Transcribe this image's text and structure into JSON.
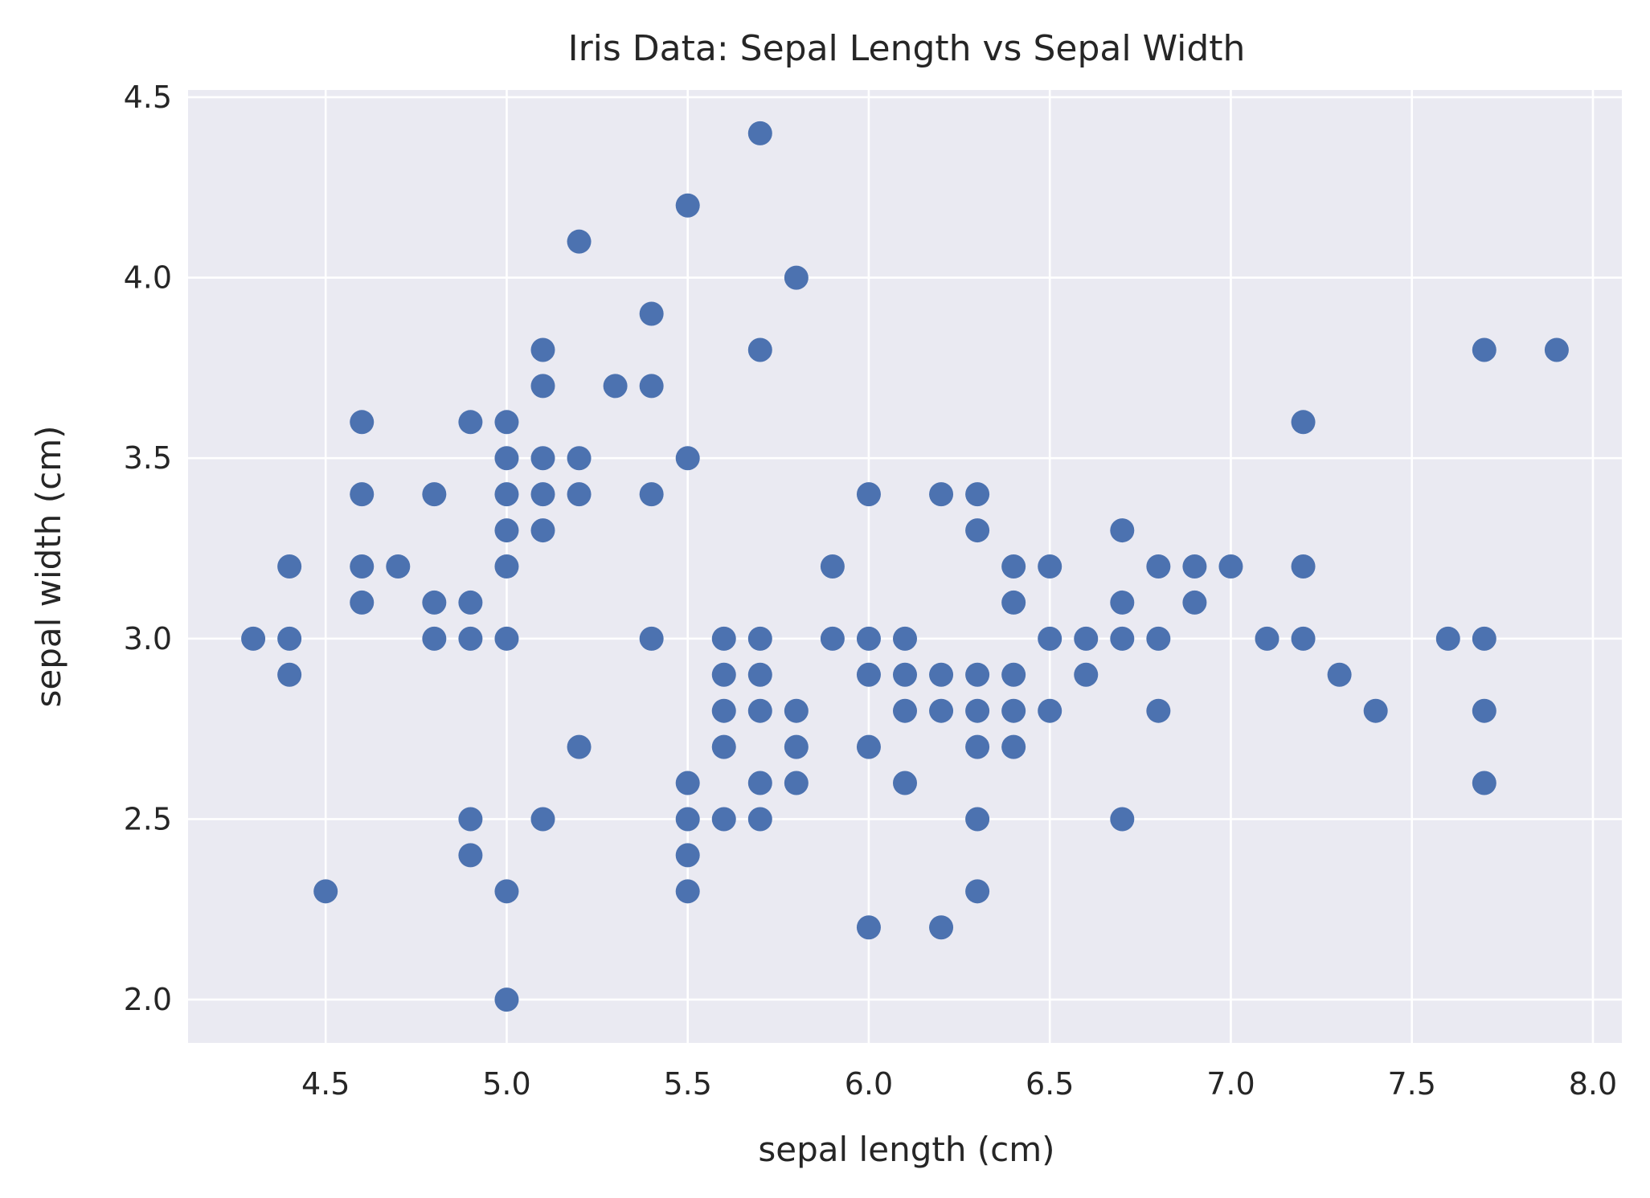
{
  "chart_data": {
    "type": "scatter",
    "title": "Iris Data: Sepal Length vs Sepal Width",
    "xlabel": "sepal length (cm)",
    "ylabel": "sepal width (cm)",
    "xlim": [
      4.12,
      8.08
    ],
    "ylim": [
      1.88,
      4.52
    ],
    "xticks": [
      "4.5",
      "5.0",
      "5.5",
      "6.0",
      "6.5",
      "7.0",
      "7.5",
      "8.0"
    ],
    "yticks": [
      "2.0",
      "2.5",
      "3.0",
      "3.5",
      "4.0",
      "4.5"
    ],
    "grid": true,
    "colors": {
      "background": "#eaeaf2",
      "grid": "#ffffff",
      "point": "#4c72b0"
    },
    "series": [
      {
        "points": [
          [
            4.3,
            3.0
          ],
          [
            4.4,
            3.2
          ],
          [
            4.4,
            3.0
          ],
          [
            4.4,
            2.9
          ],
          [
            4.5,
            2.3
          ],
          [
            4.6,
            3.6
          ],
          [
            4.6,
            3.4
          ],
          [
            4.6,
            3.2
          ],
          [
            4.6,
            3.1
          ],
          [
            4.7,
            3.2
          ],
          [
            4.8,
            3.4
          ],
          [
            4.8,
            3.1
          ],
          [
            4.8,
            3.0
          ],
          [
            4.9,
            3.6
          ],
          [
            4.9,
            3.1
          ],
          [
            4.9,
            3.0
          ],
          [
            4.9,
            2.5
          ],
          [
            4.9,
            2.4
          ],
          [
            5.0,
            3.6
          ],
          [
            5.0,
            3.5
          ],
          [
            5.0,
            3.4
          ],
          [
            5.0,
            3.3
          ],
          [
            5.0,
            3.2
          ],
          [
            5.0,
            3.0
          ],
          [
            5.0,
            2.3
          ],
          [
            5.0,
            2.0
          ],
          [
            5.1,
            3.8
          ],
          [
            5.1,
            3.7
          ],
          [
            5.1,
            3.5
          ],
          [
            5.1,
            3.4
          ],
          [
            5.1,
            3.3
          ],
          [
            5.1,
            2.5
          ],
          [
            5.2,
            4.1
          ],
          [
            5.2,
            3.5
          ],
          [
            5.2,
            3.4
          ],
          [
            5.2,
            2.7
          ],
          [
            5.3,
            3.7
          ],
          [
            5.4,
            3.9
          ],
          [
            5.4,
            3.7
          ],
          [
            5.4,
            3.4
          ],
          [
            5.4,
            3.0
          ],
          [
            5.5,
            4.2
          ],
          [
            5.5,
            3.5
          ],
          [
            5.5,
            2.6
          ],
          [
            5.5,
            2.5
          ],
          [
            5.5,
            2.4
          ],
          [
            5.5,
            2.3
          ],
          [
            5.6,
            3.0
          ],
          [
            5.6,
            2.9
          ],
          [
            5.6,
            2.8
          ],
          [
            5.6,
            2.7
          ],
          [
            5.6,
            2.5
          ],
          [
            5.7,
            4.4
          ],
          [
            5.7,
            3.8
          ],
          [
            5.7,
            3.0
          ],
          [
            5.7,
            2.9
          ],
          [
            5.7,
            2.8
          ],
          [
            5.7,
            2.6
          ],
          [
            5.7,
            2.5
          ],
          [
            5.8,
            4.0
          ],
          [
            5.8,
            2.8
          ],
          [
            5.8,
            2.7
          ],
          [
            5.8,
            2.6
          ],
          [
            5.9,
            3.2
          ],
          [
            5.9,
            3.0
          ],
          [
            6.0,
            3.4
          ],
          [
            6.0,
            3.0
          ],
          [
            6.0,
            2.9
          ],
          [
            6.0,
            2.7
          ],
          [
            6.0,
            2.2
          ],
          [
            6.1,
            3.0
          ],
          [
            6.1,
            2.9
          ],
          [
            6.1,
            2.8
          ],
          [
            6.1,
            2.6
          ],
          [
            6.2,
            3.4
          ],
          [
            6.2,
            2.9
          ],
          [
            6.2,
            2.8
          ],
          [
            6.2,
            2.2
          ],
          [
            6.3,
            3.4
          ],
          [
            6.3,
            3.3
          ],
          [
            6.3,
            2.9
          ],
          [
            6.3,
            2.8
          ],
          [
            6.3,
            2.7
          ],
          [
            6.3,
            2.5
          ],
          [
            6.3,
            2.3
          ],
          [
            6.4,
            3.2
          ],
          [
            6.4,
            3.1
          ],
          [
            6.4,
            2.9
          ],
          [
            6.4,
            2.8
          ],
          [
            6.4,
            2.7
          ],
          [
            6.5,
            3.2
          ],
          [
            6.5,
            3.0
          ],
          [
            6.5,
            2.8
          ],
          [
            6.6,
            3.0
          ],
          [
            6.6,
            2.9
          ],
          [
            6.7,
            3.3
          ],
          [
            6.7,
            3.1
          ],
          [
            6.7,
            3.0
          ],
          [
            6.7,
            2.5
          ],
          [
            6.8,
            3.2
          ],
          [
            6.8,
            3.0
          ],
          [
            6.8,
            2.8
          ],
          [
            6.9,
            3.2
          ],
          [
            6.9,
            3.1
          ],
          [
            7.0,
            3.2
          ],
          [
            7.1,
            3.0
          ],
          [
            7.2,
            3.6
          ],
          [
            7.2,
            3.2
          ],
          [
            7.2,
            3.0
          ],
          [
            7.3,
            2.9
          ],
          [
            7.4,
            2.8
          ],
          [
            7.6,
            3.0
          ],
          [
            7.7,
            3.8
          ],
          [
            7.7,
            3.0
          ],
          [
            7.7,
            2.8
          ],
          [
            7.7,
            2.6
          ],
          [
            7.9,
            3.8
          ]
        ]
      }
    ]
  }
}
